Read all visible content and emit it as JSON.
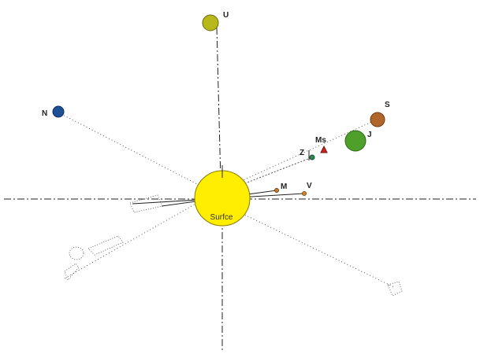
{
  "colors": {
    "background": "#ffffff",
    "sun_fill": "#ffee00",
    "uranus": "#b8b81a",
    "neptune": "#1d4f96",
    "saturn": "#b0652a",
    "jupiter": "#4ea02a",
    "mars": "#cc2222",
    "earth": "#2c8a54",
    "mercury": "#c08030",
    "venus": "#d88a28",
    "axis_line": "#222222",
    "dotted_line": "#555555"
  },
  "center_label": "Surfce",
  "bodies": [
    {
      "id": "uranus",
      "label": "U"
    },
    {
      "id": "neptune",
      "label": "N"
    },
    {
      "id": "saturn",
      "label": "S"
    },
    {
      "id": "jupiter",
      "label": "J"
    },
    {
      "id": "mars",
      "label": "Ms"
    },
    {
      "id": "earth",
      "label": "Z"
    },
    {
      "id": "mercury",
      "label": "M"
    },
    {
      "id": "venus",
      "label": "V"
    }
  ]
}
